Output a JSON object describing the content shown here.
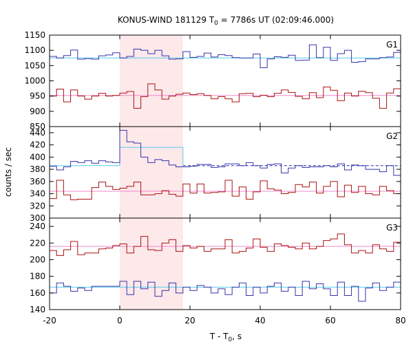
{
  "chart_data": {
    "type": "line",
    "title": "KONUS-WIND 181129 T",
    "title_sub": "0",
    "title_rest": " = 7786s UT (02:09:46.000)",
    "xlabel_main": "T - T",
    "xlabel_sub": "0",
    "xlabel_rest": ", s",
    "ylabel": "counts / sec",
    "xlim": [
      -20,
      80
    ],
    "x_ticks": [
      "-20",
      "0",
      "20",
      "40",
      "60",
      "80"
    ],
    "x_tick_values": [
      -20,
      0,
      20,
      40,
      60,
      80
    ],
    "highlight_interval": [
      0,
      18
    ],
    "grid": false,
    "bin_edges": [
      -20,
      -18,
      -16,
      -14,
      -12,
      -10,
      -8,
      -6,
      -4,
      -2,
      0,
      2,
      4,
      6,
      8,
      10,
      12,
      14,
      16,
      18,
      20,
      22,
      24,
      26,
      28,
      30,
      32,
      34,
      36,
      38,
      40,
      42,
      44,
      46,
      48,
      50,
      52,
      54,
      56,
      58,
      60,
      62,
      64,
      66,
      68,
      70,
      72,
      74,
      76,
      78,
      80
    ],
    "panels": [
      {
        "label": "G1",
        "ylim": [
          850,
          1150
        ],
        "y_ticks": [
          "1150",
          "1100",
          "1050",
          "1000",
          "950",
          "900",
          "850"
        ],
        "y_tick_values": [
          1150,
          1100,
          1050,
          1000,
          950,
          900,
          850
        ],
        "series": [
          {
            "color": "#3333aa",
            "background_level": 1075,
            "background_color": "#55ccee",
            "values": [
              1080,
              1075,
              1083,
              1101,
              1071,
              1073,
              1071,
              1082,
              1085,
              1092,
              1075,
              1080,
              1104,
              1100,
              1089,
              1100,
              1082,
              1071,
              1072,
              1096,
              1077,
              1080,
              1091,
              1078,
              1086,
              1083,
              1076,
              1075,
              1075,
              1088,
              1043,
              1072,
              1079,
              1077,
              1084,
              1067,
              1068,
              1118,
              1076,
              1110,
              1067,
              1089,
              1100,
              1061,
              1063,
              1072,
              1072,
              1076,
              1078,
              1093
            ]
          },
          {
            "color": "#aa1111",
            "background_level": 952,
            "background_color": "#ee88cc",
            "values": [
              950,
              973,
              931,
              970,
              950,
              940,
              950,
              959,
              950,
              952,
              960,
              965,
              910,
              948,
              990,
              970,
              940,
              950,
              956,
              960,
              955,
              958,
              952,
              941,
              948,
              941,
              931,
              958,
              959,
              948,
              953,
              948,
              959,
              970,
              962,
              949,
              941,
              961,
              945,
              980,
              969,
              935,
              960,
              950,
              966,
              961,
              943,
              910,
              960,
              974
            ]
          }
        ]
      },
      {
        "label": "G2",
        "ylim": [
          300,
          450
        ],
        "y_ticks": [
          "440",
          "420",
          "400",
          "380",
          "360",
          "340",
          "320",
          "300"
        ],
        "y_tick_values": [
          440,
          420,
          400,
          380,
          360,
          340,
          320,
          300
        ],
        "series": [
          {
            "color": "#3333aa",
            "background_level": 386,
            "background_color": "#55ccee",
            "dashed_background_after": 18,
            "pulse_level": 416,
            "pulse_interval": [
              0,
              18
            ],
            "values": [
              385,
              379,
              384,
              393,
              391,
              394,
              390,
              394,
              392,
              391,
              444,
              425,
              423,
              400,
              391,
              396,
              394,
              387,
              384,
              384,
              385,
              388,
              388,
              383,
              384,
              389,
              389,
              386,
              391,
              386,
              382,
              388,
              389,
              374,
              382,
              386,
              383,
              384,
              384,
              386,
              384,
              389,
              379,
              387,
              386,
              380,
              380,
              376,
              386,
              370
            ]
          },
          {
            "color": "#aa1111",
            "background_level": 344,
            "background_color": "#ee88cc",
            "values": [
              332,
              362,
              338,
              330,
              331,
              331,
              350,
              359,
              352,
              347,
              349,
              352,
              359,
              338,
              338,
              340,
              345,
              339,
              336,
              356,
              341,
              356,
              341,
              342,
              343,
              362,
              336,
              351,
              331,
              343,
              361,
              348,
              346,
              340,
              342,
              355,
              351,
              359,
              341,
              352,
              360,
              335,
              354,
              342,
              352,
              340,
              338,
              352,
              345,
              340
            ]
          }
        ]
      },
      {
        "label": "G3",
        "ylim": [
          140,
          250
        ],
        "y_ticks": [
          "240",
          "220",
          "200",
          "180",
          "160",
          "140"
        ],
        "y_tick_values": [
          240,
          220,
          200,
          180,
          160,
          140
        ],
        "series": [
          {
            "color": "#aa1111",
            "background_level": 216,
            "background_color": "#ee88cc",
            "values": [
              211,
              205,
              212,
              222,
              206,
              208,
              208,
              213,
              214,
              217,
              219,
              208,
              216,
              228,
              212,
              211,
              220,
              224,
              210,
              217,
              214,
              216,
              210,
              213,
              213,
              224,
              208,
              210,
              214,
              225,
              215,
              210,
              219,
              217,
              215,
              213,
              220,
              213,
              216,
              223,
              225,
              231,
              218,
              208,
              211,
              208,
              218,
              213,
              210,
              221
            ]
          },
          {
            "color": "#3333aa",
            "background_level": 167,
            "background_color": "#55ccee",
            "values": [
              160,
              172,
              168,
              162,
              166,
              163,
              168,
              168,
              168,
              168,
              174,
              158,
              174,
              165,
              173,
              156,
              163,
              172,
              160,
              167,
              163,
              169,
              167,
              160,
              165,
              158,
              167,
              172,
              157,
              167,
              160,
              168,
              172,
              162,
              167,
              157,
              174,
              165,
              171,
              165,
              157,
              173,
              157,
              168,
              150,
              166,
              172,
              163,
              167,
              173
            ]
          }
        ]
      }
    ]
  }
}
